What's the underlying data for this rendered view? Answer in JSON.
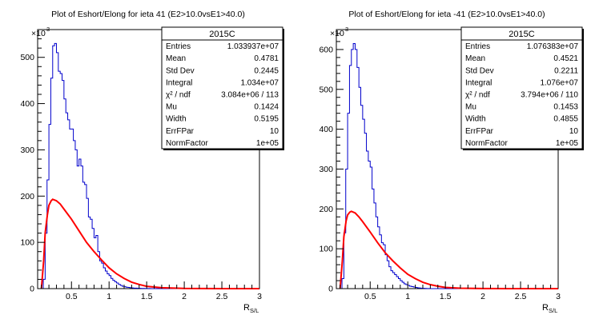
{
  "chart_data": [
    {
      "type": "histogram",
      "title": "Plot of Eshort/Elong for ieta 41 (E2>10.0vsE1>40.0)",
      "xlabel": "R",
      "xlabel_sub": "S/L",
      "ylabel": "",
      "y_multiplier": "×10",
      "y_multiplier_exp": "3",
      "xlim": [
        0.05,
        3.0
      ],
      "ylim": [
        0,
        560
      ],
      "x_ticks": [
        0.5,
        1,
        1.5,
        2,
        2.5,
        3
      ],
      "x_tick_labels": [
        "0.5",
        "1",
        "1.5",
        "2",
        "2.5",
        "3"
      ],
      "y_ticks": [
        0,
        100,
        200,
        300,
        400,
        500
      ],
      "y_tick_labels": [
        "0",
        "100",
        "200",
        "300",
        "400",
        "500"
      ],
      "histogram": {
        "color": "#0000cc",
        "bin_width": 0.025,
        "x_start": 0.1,
        "values": [
          0,
          20,
          120,
          235,
          355,
          455,
          525,
          530,
          510,
          470,
          465,
          450,
          410,
          380,
          365,
          345,
          345,
          320,
          300,
          265,
          280,
          265,
          230,
          225,
          195,
          155,
          150,
          130,
          110,
          115,
          80,
          60,
          55,
          45,
          38,
          32,
          28,
          22,
          18,
          15,
          12,
          9,
          7,
          5,
          4,
          3,
          2.5,
          2,
          1.5,
          1,
          1,
          0.8,
          0.6,
          0.5,
          0.4,
          0.3,
          0.2,
          0.2,
          0.1,
          0.1,
          0,
          0,
          0,
          0,
          0,
          0,
          0,
          0,
          0,
          0,
          0,
          0,
          0,
          0,
          0,
          0,
          0,
          0,
          0,
          0,
          0,
          0,
          0,
          0,
          0,
          0,
          0,
          0,
          0,
          0,
          0,
          0,
          0,
          0,
          0,
          0,
          0,
          0,
          0,
          0,
          0,
          0,
          0,
          0,
          0,
          0,
          0,
          0,
          0,
          0,
          0,
          0,
          0,
          0,
          0,
          0
        ]
      },
      "fit": {
        "color": "#ff0000",
        "x": [
          0.1,
          0.13,
          0.15,
          0.18,
          0.2,
          0.23,
          0.25,
          0.3,
          0.35,
          0.4,
          0.5,
          0.6,
          0.7,
          0.8,
          0.9,
          1.0,
          1.1,
          1.2,
          1.3,
          1.4,
          1.5,
          1.7,
          2.0,
          2.5,
          3.0
        ],
        "y": [
          0,
          60,
          120,
          160,
          180,
          190,
          193,
          190,
          183,
          172,
          150,
          125,
          100,
          80,
          62,
          45,
          32,
          22,
          14,
          9,
          5,
          2,
          0.5,
          0,
          0
        ]
      },
      "stats": {
        "title": "2015C",
        "rows": [
          {
            "label": "Entries",
            "value": "1.033937e+07"
          },
          {
            "label": "Mean",
            "value": "0.4781"
          },
          {
            "label": "Std Dev",
            "value": "0.2445"
          },
          {
            "label": "Integral",
            "value": "1.034e+07"
          },
          {
            "label": "χ² / ndf",
            "value": "3.084e+06 / 113"
          },
          {
            "label": "Mu",
            "value": "0.1424"
          },
          {
            "label": "Width",
            "value": "0.5195"
          },
          {
            "label": "ErrFPar",
            "value": "10"
          },
          {
            "label": "NormFactor",
            "value": "1e+05"
          }
        ]
      }
    },
    {
      "type": "histogram",
      "title": "Plot of Eshort/Elong for ieta -41 (E2>10.0vsE1>40.0)",
      "xlabel": "R",
      "xlabel_sub": "S/L",
      "ylabel": "",
      "y_multiplier": "×10",
      "y_multiplier_exp": "3",
      "xlim": [
        0.05,
        3.0
      ],
      "ylim": [
        0,
        650
      ],
      "x_ticks": [
        0.5,
        1,
        1.5,
        2,
        2.5,
        3
      ],
      "x_tick_labels": [
        "0.5",
        "1",
        "1.5",
        "2",
        "2.5",
        "3"
      ],
      "y_ticks": [
        0,
        100,
        200,
        300,
        400,
        500,
        600
      ],
      "y_tick_labels": [
        "0",
        "100",
        "200",
        "300",
        "400",
        "500",
        "600"
      ],
      "histogram": {
        "color": "#0000cc",
        "bin_width": 0.025,
        "x_start": 0.1,
        "values": [
          0,
          25,
          140,
          300,
          440,
          560,
          600,
          615,
          600,
          555,
          505,
          460,
          425,
          390,
          345,
          320,
          305,
          250,
          215,
          180,
          155,
          135,
          115,
          110,
          85,
          70,
          55,
          45,
          40,
          35,
          30,
          25,
          20,
          16,
          12,
          10,
          8,
          6,
          5,
          4,
          3,
          2,
          1.5,
          1,
          0.8,
          0.5,
          0.3,
          0.2,
          0.1,
          0,
          0,
          0,
          0,
          0,
          0,
          0,
          0,
          0,
          0,
          0,
          0,
          0,
          0,
          0,
          0,
          0,
          0,
          0,
          0,
          0,
          0,
          0,
          0,
          0,
          0,
          0,
          0,
          0,
          0,
          0,
          0,
          0,
          0,
          0,
          0,
          0,
          0,
          0,
          0,
          0,
          0,
          0,
          0,
          0,
          0,
          0,
          0,
          0,
          0,
          0,
          0,
          0,
          0,
          0,
          0,
          0,
          0,
          0,
          0,
          0,
          0,
          0,
          0,
          0,
          0,
          0
        ]
      },
      "fit": {
        "color": "#ff0000",
        "x": [
          0.1,
          0.13,
          0.15,
          0.18,
          0.2,
          0.23,
          0.25,
          0.3,
          0.35,
          0.4,
          0.5,
          0.6,
          0.7,
          0.8,
          0.9,
          1.0,
          1.1,
          1.2,
          1.3,
          1.4,
          1.5,
          1.7,
          2.0,
          2.5,
          3.0
        ],
        "y": [
          0,
          70,
          130,
          170,
          185,
          192,
          194,
          190,
          180,
          168,
          142,
          115,
          90,
          70,
          52,
          36,
          25,
          16,
          10,
          6,
          3,
          1,
          0.3,
          0,
          0
        ]
      },
      "stats": {
        "title": "2015C",
        "rows": [
          {
            "label": "Entries",
            "value": "1.076383e+07"
          },
          {
            "label": "Mean",
            "value": "0.4521"
          },
          {
            "label": "Std Dev",
            "value": "0.2211"
          },
          {
            "label": "Integral",
            "value": "1.076e+07"
          },
          {
            "label": "χ² / ndf",
            "value": "3.794e+06 / 110"
          },
          {
            "label": "Mu",
            "value": "0.1453"
          },
          {
            "label": "Width",
            "value": "0.4855"
          },
          {
            "label": "ErrFPar",
            "value": "10"
          },
          {
            "label": "NormFactor",
            "value": "1e+05"
          }
        ]
      }
    }
  ]
}
